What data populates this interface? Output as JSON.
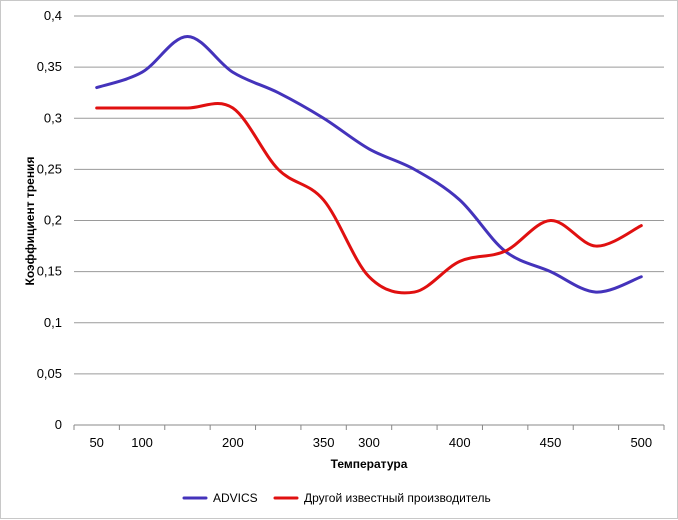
{
  "chart_data": {
    "type": "line",
    "xlabel": "Температура",
    "ylabel": "Коэффициент трения",
    "x_tick_labels": [
      "50",
      "100",
      "",
      "200",
      "",
      "350",
      "300",
      "",
      "400",
      "",
      "450",
      "",
      "500"
    ],
    "y_ticks": [
      "0",
      "0,05",
      "0,1",
      "0,15",
      "0,2",
      "0,25",
      "0,3",
      "0,35",
      "0,4"
    ],
    "ylim": [
      0,
      0.4
    ],
    "grid": "horizontal",
    "legend_position": "bottom",
    "series": [
      {
        "name": "ADVICS",
        "color": "#4433bb",
        "values": [
          0.33,
          0.345,
          0.38,
          0.345,
          0.325,
          0.3,
          0.27,
          0.25,
          0.22,
          0.17,
          0.15,
          0.13,
          0.145
        ]
      },
      {
        "name": "Другой известный производитель",
        "color": "#e01010",
        "values": [
          0.31,
          0.31,
          0.31,
          0.31,
          0.25,
          0.22,
          0.145,
          0.13,
          0.16,
          0.17,
          0.2,
          0.175,
          0.195
        ]
      }
    ]
  }
}
